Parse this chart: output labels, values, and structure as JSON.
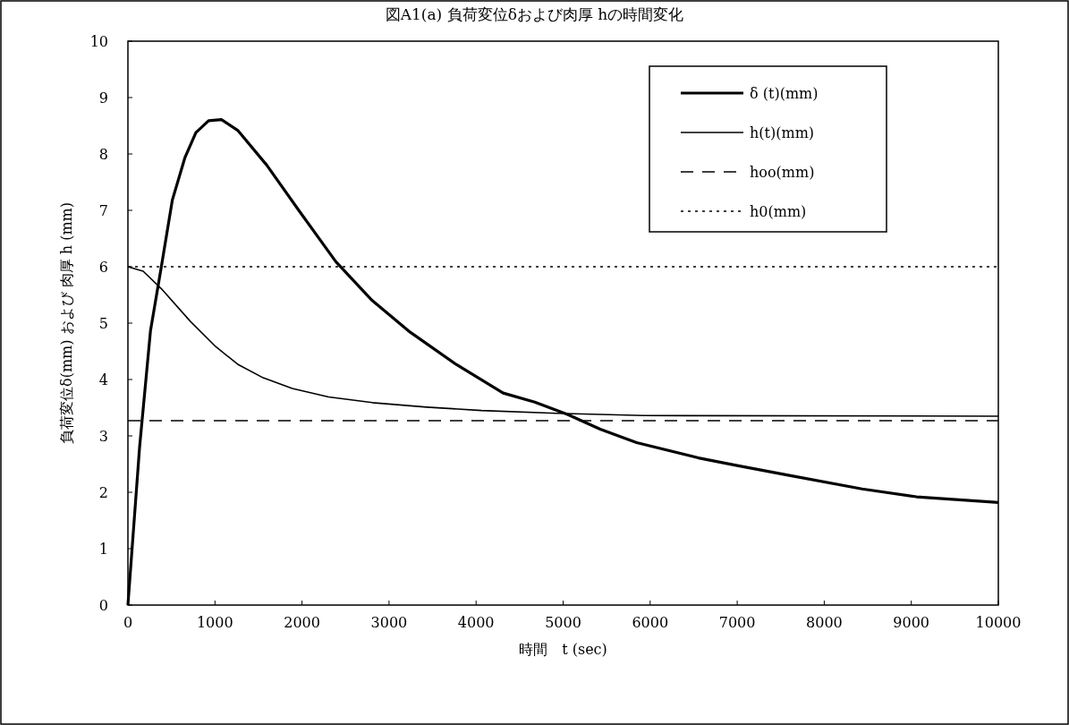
{
  "chart_data": {
    "type": "line",
    "title": "図A1(a) 負荷変位δおよび肉厚 hの時間変化",
    "xlabel": "時間　t (sec)",
    "ylabel": "負荷変位δ(mm) および 肉厚 h (mm)",
    "xlim": [
      0,
      10000
    ],
    "ylim": [
      0,
      10
    ],
    "xticks": [
      0,
      1000,
      2000,
      3000,
      4000,
      5000,
      6000,
      7000,
      8000,
      9000,
      10000
    ],
    "yticks": [
      0,
      1,
      2,
      3,
      4,
      5,
      6,
      7,
      8,
      9,
      10
    ],
    "legend": "top right",
    "series": [
      {
        "name": "δ (t)(mm)",
        "color": "#000000",
        "line_style": "solid",
        "x": [
          0,
          134,
          259,
          384,
          510,
          656,
          781,
          927,
          1074,
          1261,
          1596,
          1972,
          2389,
          2807,
          3225,
          3768,
          4311,
          4674,
          5050,
          5426,
          5844,
          6554,
          7013,
          7598,
          8434,
          9060,
          10000
        ],
        "values": [
          0,
          2.8,
          4.86,
          6.0,
          7.18,
          7.94,
          8.38,
          8.59,
          8.61,
          8.42,
          7.8,
          6.98,
          6.09,
          5.4,
          4.86,
          4.27,
          3.76,
          3.6,
          3.38,
          3.12,
          2.88,
          2.61,
          2.47,
          2.3,
          2.06,
          1.92,
          1.82
        ]
      },
      {
        "name": "h(t)(mm)",
        "color": "#000000",
        "line_style": "solid",
        "x": [
          0,
          175,
          384,
          718,
          1011,
          1261,
          1554,
          1888,
          2306,
          2807,
          3434,
          4060,
          4921,
          5927,
          10000
        ],
        "values": [
          6.0,
          5.92,
          5.61,
          5.03,
          4.58,
          4.27,
          4.03,
          3.84,
          3.69,
          3.59,
          3.51,
          3.45,
          3.4,
          3.36,
          3.35
        ]
      },
      {
        "name": "hoo(mm)",
        "color": "#000000",
        "line_style": "dashed",
        "x": [
          0,
          10000
        ],
        "values": [
          3.27,
          3.27
        ]
      },
      {
        "name": "h0(mm)",
        "color": "#000000",
        "line_style": "dotted",
        "x": [
          0,
          10000
        ],
        "values": [
          6.0,
          6.0
        ]
      }
    ]
  }
}
